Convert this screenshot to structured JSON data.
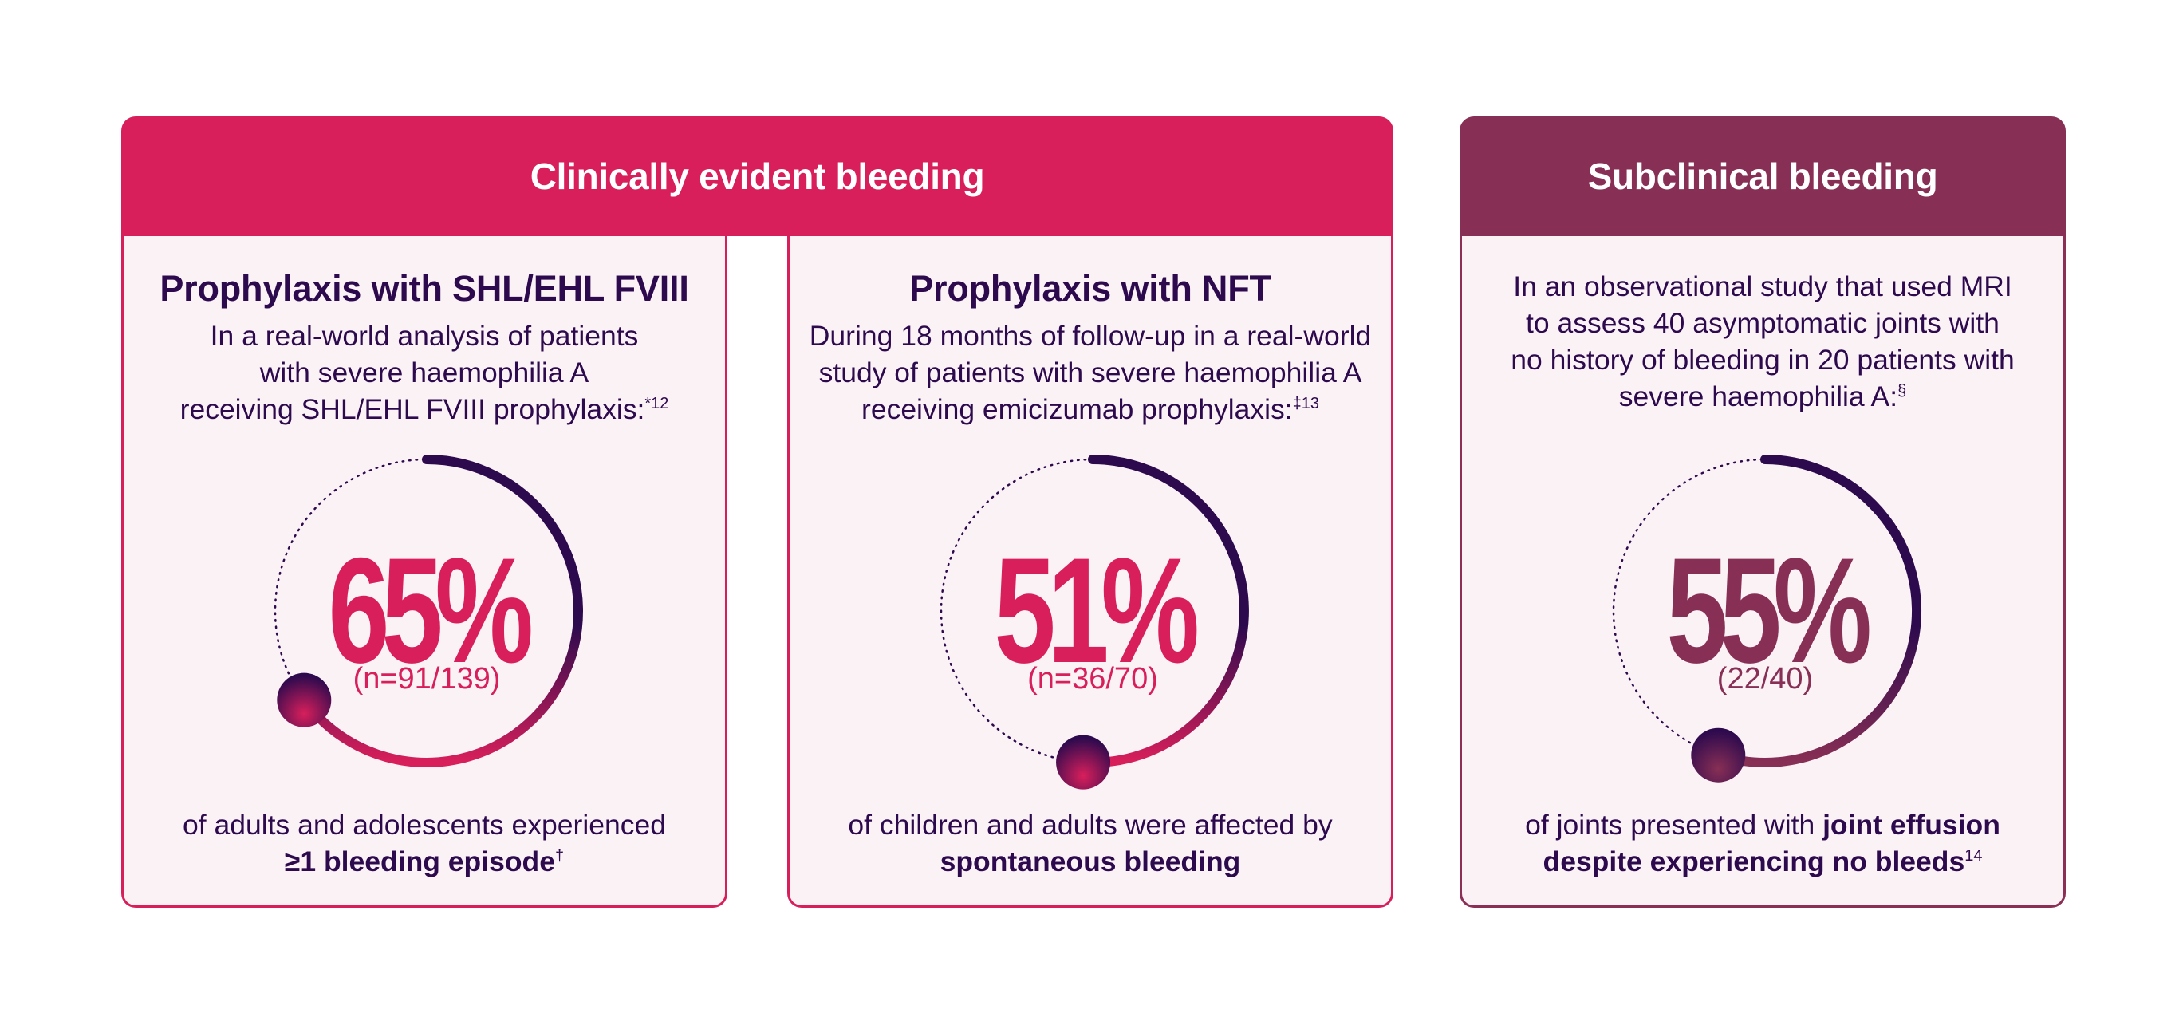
{
  "banners": {
    "clinical": "Clinically evident bleeding",
    "subclinical": "Subclinical bleeding"
  },
  "colors": {
    "accent_pink": "#d81f5b",
    "accent_plum": "#882f55",
    "dark_navy": "#2d0a4e",
    "card_bg": "#fbf2f6"
  },
  "panels": [
    {
      "title": "Prophylaxis with SHL/EHL FVIII",
      "desc_lines": [
        "In a real-world analysis of patients",
        "with severe haemophilia A",
        "receiving SHL/EHL FVIII prophylaxis:"
      ],
      "desc_sup": "*12",
      "percent_label": "65%",
      "n_label": "(n=91/139)",
      "caption_line1": "of adults and adolescents experienced",
      "caption_bold": "≥1 bleeding episode",
      "caption_sup": "†"
    },
    {
      "title": "Prophylaxis with NFT",
      "desc_lines": [
        "During 18 months of follow-up in a real-world",
        "study of patients with severe haemophilia A",
        "receiving emicizumab prophylaxis:"
      ],
      "desc_sup": "‡13",
      "percent_label": "51%",
      "n_label": "(n=36/70)",
      "caption_line1": "of children and adults were affected by",
      "caption_bold": "spontaneous bleeding",
      "caption_sup": ""
    },
    {
      "title": "",
      "desc_lines": [
        "In an observational study that used MRI",
        "to assess 40 asymptomatic joints with",
        "no history of bleeding in 20 patients with",
        "severe haemophilia A:"
      ],
      "desc_sup": "§",
      "percent_label": "55%",
      "n_label": "(22/40)",
      "caption_line1_plain": "of joints presented with ",
      "caption_line1_bold": "joint effusion",
      "caption_bold": "despite experiencing no bleeds",
      "caption_sup": "14"
    }
  ],
  "chart_data": {
    "type": "pie",
    "variant": "radial-progress",
    "series": [
      {
        "name": "Prophylaxis with SHL/EHL FVIII",
        "value": 65,
        "numerator": 91,
        "denominator": 139
      },
      {
        "name": "Prophylaxis with NFT",
        "value": 51,
        "numerator": 36,
        "denominator": 70
      },
      {
        "name": "Subclinical bleeding",
        "value": 55,
        "numerator": 22,
        "denominator": 40
      }
    ],
    "unit": "%",
    "range": [
      0,
      100
    ]
  }
}
